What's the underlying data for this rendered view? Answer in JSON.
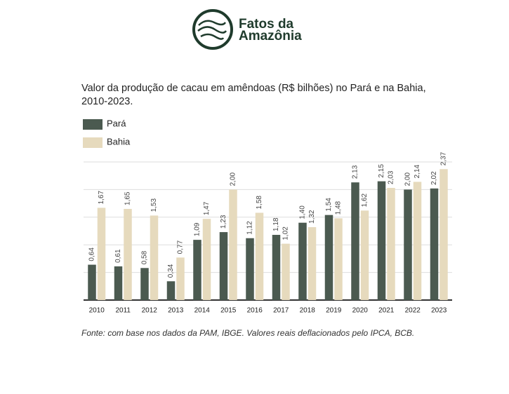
{
  "brand": {
    "line1": "Fatos da",
    "line2": "Amazônia"
  },
  "chart_data": {
    "type": "bar",
    "title": "Valor da produção de cacau em amêndoas (R$ bilhões) no Pará e na Bahia, 2010-2023.",
    "categories": [
      "2010",
      "2011",
      "2012",
      "2013",
      "2014",
      "2015",
      "2016",
      "2017",
      "2018",
      "2019",
      "2020",
      "2021",
      "2022",
      "2023"
    ],
    "series": [
      {
        "name": "Pará",
        "color": "#4b5a50",
        "values": [
          0.64,
          0.61,
          0.58,
          0.34,
          1.09,
          1.23,
          1.12,
          1.18,
          1.4,
          1.54,
          2.13,
          2.15,
          2.0,
          2.02
        ],
        "value_labels": [
          "0,64",
          "0,61",
          "0,58",
          "0,34",
          "1,09",
          "1,23",
          "1,12",
          "1,18",
          "1,40",
          "1,54",
          "2,13",
          "2,15",
          "2,00",
          "2,02"
        ]
      },
      {
        "name": "Bahia",
        "color": "#e6dabd",
        "values": [
          1.67,
          1.65,
          1.53,
          0.77,
          1.47,
          2.0,
          1.58,
          1.02,
          1.32,
          1.48,
          1.62,
          2.03,
          2.14,
          2.37
        ],
        "value_labels": [
          "1,67",
          "1,65",
          "1,53",
          "0,77",
          "1,47",
          "2,00",
          "1,58",
          "1,02",
          "1,32",
          "1,48",
          "1,62",
          "2,03",
          "2,14",
          "2,37"
        ]
      }
    ],
    "ylim": [
      0,
      2.5
    ],
    "yticks": [
      0,
      0.5,
      1,
      1.5,
      2,
      2.5
    ],
    "grid": true,
    "source": "Fonte: com base nos dados da PAM, IBGE. Valores reais deflacionados pelo IPCA, BCB."
  }
}
